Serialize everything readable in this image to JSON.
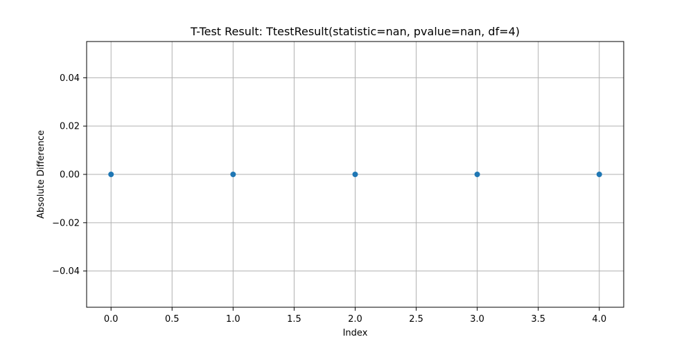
{
  "chart_data": {
    "type": "scatter",
    "title": "T-Test Result: TtestResult(statistic=nan, pvalue=nan, df=4)",
    "xlabel": "Index",
    "ylabel": "Absolute Difference",
    "xlim": [
      -0.2,
      4.2
    ],
    "ylim": [
      -0.055,
      0.055
    ],
    "x_ticks": [
      0.0,
      0.5,
      1.0,
      1.5,
      2.0,
      2.5,
      3.0,
      3.5,
      4.0
    ],
    "x_tick_labels": [
      "0.0",
      "0.5",
      "1.0",
      "1.5",
      "2.0",
      "2.5",
      "3.0",
      "3.5",
      "4.0"
    ],
    "y_ticks": [
      -0.04,
      -0.02,
      0.0,
      0.02,
      0.04
    ],
    "y_tick_labels": [
      "−0.04",
      "−0.02",
      "0.00",
      "0.02",
      "0.04"
    ],
    "grid": true,
    "marker_color": "#1f77b4",
    "series": [
      {
        "x": [
          0,
          1,
          2,
          3,
          4
        ],
        "y": [
          0.0,
          0.0,
          0.0,
          0.0,
          0.0
        ]
      }
    ]
  }
}
